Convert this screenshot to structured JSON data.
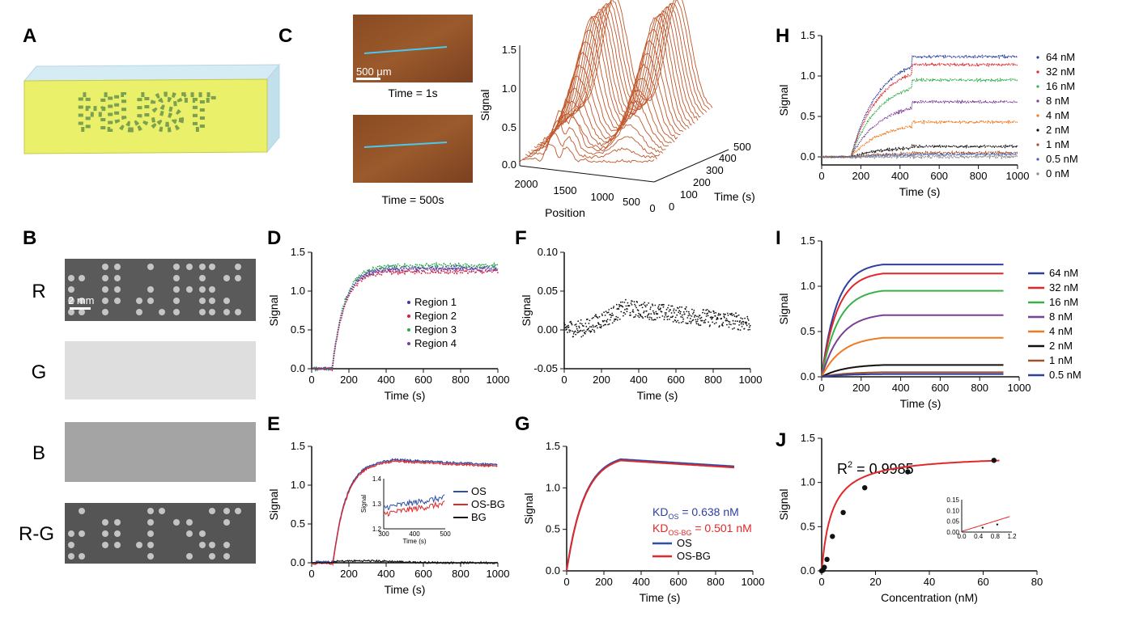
{
  "panels": {
    "A": {
      "label": "A",
      "text": "HUST"
    },
    "B": {
      "label": "B",
      "rows": [
        "R",
        "G",
        "B",
        "R-G"
      ],
      "scale": "2 mm"
    },
    "C": {
      "label": "C",
      "scale": "500 μm",
      "caption1": "Time = 1s",
      "caption2": "Time = 500s",
      "ylabel": "Signal",
      "xlabel": "Position",
      "zlabel": "Time (s)",
      "yticks": [
        "1.5",
        "1.0",
        "0.5",
        "0.0"
      ],
      "xticks": [
        "2000",
        "1500",
        "1000",
        "500",
        "0"
      ],
      "zticks": [
        "0",
        "100",
        "200",
        "300",
        "400",
        "500"
      ]
    },
    "D": {
      "label": "D"
    },
    "E": {
      "label": "E"
    },
    "F": {
      "label": "F"
    },
    "G": {
      "label": "G",
      "kd_os": "KD",
      "kd_os_sub": "OS",
      "kd_os_val": " = 0.638 nM",
      "kd_osbg_sub": "OS-BG",
      "kd_osbg_val": " = 0.501 nM"
    },
    "H": {
      "label": "H"
    },
    "I": {
      "label": "I"
    },
    "J": {
      "label": "J",
      "r2_text": "R",
      "r2_sup": "2",
      "r2_val": " = 0.9985"
    }
  },
  "chart_data": [
    {
      "panel": "C",
      "type": "line",
      "subtype": "3d-waterfall",
      "ylabel": "Signal",
      "xlabel": "Position",
      "zlabel": "Time (s)",
      "x_range": [
        0,
        2000
      ],
      "y_range": [
        0,
        1.5
      ],
      "z_range": [
        0,
        500
      ]
    },
    {
      "panel": "D",
      "type": "scatter",
      "xlabel": "Time (s)",
      "ylabel": "Signal",
      "xlim": [
        0,
        1000
      ],
      "ylim": [
        0,
        1.5
      ],
      "xticks": [
        "0",
        "200",
        "400",
        "600",
        "800",
        "1000"
      ],
      "yticks": [
        "0.0",
        "0.5",
        "1.0",
        "1.5"
      ],
      "series": [
        {
          "name": "Region 1",
          "color": "#3a3aa8",
          "plateau": 1.3
        },
        {
          "name": "Region 2",
          "color": "#d81b3a",
          "plateau": 1.25
        },
        {
          "name": "Region 3",
          "color": "#2fa84f",
          "plateau": 1.33
        },
        {
          "name": "Region 4",
          "color": "#7a3f98",
          "plateau": 1.28
        }
      ]
    },
    {
      "panel": "E",
      "type": "line",
      "xlabel": "Time (s)",
      "ylabel": "Signal",
      "xlim": [
        0,
        1000
      ],
      "ylim": [
        0,
        1.5
      ],
      "xticks": [
        "0",
        "200",
        "400",
        "600",
        "800",
        "1000"
      ],
      "yticks": [
        "0.0",
        "0.5",
        "1.0",
        "1.5"
      ],
      "series": [
        {
          "name": "OS",
          "color": "#2e4fa8"
        },
        {
          "name": "OS-BG",
          "color": "#e0282a"
        },
        {
          "name": "BG",
          "color": "#111111"
        }
      ],
      "inset": {
        "xlim": [
          300,
          500
        ],
        "ylim": [
          1.2,
          1.4
        ],
        "xticks": [
          "300",
          "400",
          "500"
        ],
        "yticks": [
          "1.2",
          "1.3",
          "1.4"
        ],
        "xlabel": "Time (s)",
        "ylabel": "Signal"
      }
    },
    {
      "panel": "F",
      "type": "scatter",
      "xlabel": "Time (s)",
      "ylabel": "Signal",
      "xlim": [
        0,
        1000
      ],
      "ylim": [
        -0.05,
        0.1
      ],
      "xticks": [
        "0",
        "200",
        "400",
        "600",
        "800",
        "1000"
      ],
      "yticks": [
        "-0.05",
        "0.00",
        "0.05",
        "0.10"
      ]
    },
    {
      "panel": "G",
      "type": "line",
      "xlabel": "Time (s)",
      "ylabel": "Signal",
      "xlim": [
        0,
        1000
      ],
      "ylim": [
        0,
        1.5
      ],
      "xticks": [
        "0",
        "200",
        "400",
        "600",
        "800",
        "1000"
      ],
      "yticks": [
        "0.0",
        "0.5",
        "1.0",
        "1.5"
      ],
      "series": [
        {
          "name": "OS",
          "color": "#2e4fa8",
          "KD_nM": 0.638
        },
        {
          "name": "OS-BG",
          "color": "#e0282a",
          "KD_nM": 0.501
        }
      ]
    },
    {
      "panel": "H",
      "type": "scatter",
      "xlabel": "Time (s)",
      "ylabel": "Signal",
      "xlim": [
        0,
        1000
      ],
      "ylim": [
        -0.1,
        1.5
      ],
      "xticks": [
        "0",
        "200",
        "400",
        "600",
        "800",
        "1000"
      ],
      "yticks": [
        "0.0",
        "0.5",
        "1.0",
        "1.5"
      ],
      "series": [
        {
          "name": "64 nM",
          "color": "#2e3fa0",
          "plateau": 1.24
        },
        {
          "name": "32 nM",
          "color": "#e0282a",
          "plateau": 1.14
        },
        {
          "name": "16 nM",
          "color": "#3ab04a",
          "plateau": 0.95
        },
        {
          "name": "8 nM",
          "color": "#7a3f98",
          "plateau": 0.68
        },
        {
          "name": "4 nM",
          "color": "#f07a20",
          "plateau": 0.43
        },
        {
          "name": "2 nM",
          "color": "#111111",
          "plateau": 0.13
        },
        {
          "name": "1 nM",
          "color": "#a0522d",
          "plateau": 0.05
        },
        {
          "name": "0.5 nM",
          "color": "#4a5fb0",
          "plateau": 0.03
        },
        {
          "name": "0 nM",
          "color": "#888888",
          "plateau": 0.0
        }
      ]
    },
    {
      "panel": "I",
      "type": "line",
      "xlabel": "Time (s)",
      "ylabel": "Signal",
      "xlim": [
        0,
        1000
      ],
      "ylim": [
        0,
        1.5
      ],
      "xticks": [
        "0",
        "200",
        "400",
        "600",
        "800",
        "1000"
      ],
      "yticks": [
        "0.0",
        "0.5",
        "1.0",
        "1.5"
      ],
      "series": [
        {
          "name": "64 nM",
          "color": "#2e3fa0",
          "plateau": 1.24
        },
        {
          "name": "32 nM",
          "color": "#e0282a",
          "plateau": 1.14
        },
        {
          "name": "16 nM",
          "color": "#3ab04a",
          "plateau": 0.95
        },
        {
          "name": "8 nM",
          "color": "#7a3f98",
          "plateau": 0.68
        },
        {
          "name": "4 nM",
          "color": "#f07a20",
          "plateau": 0.43
        },
        {
          "name": "2 nM",
          "color": "#111111",
          "plateau": 0.13
        },
        {
          "name": "1 nM",
          "color": "#a0522d",
          "plateau": 0.05
        },
        {
          "name": "0.5 nM",
          "color": "#2e3fa0",
          "plateau": 0.03
        }
      ]
    },
    {
      "panel": "J",
      "type": "scatter",
      "xlabel": "Concentration (nM)",
      "ylabel": "Signal",
      "xlim": [
        0,
        80
      ],
      "ylim": [
        0,
        1.5
      ],
      "xticks": [
        "0",
        "20",
        "40",
        "60",
        "80"
      ],
      "yticks": [
        "0.0",
        "0.5",
        "1.0",
        "1.5"
      ],
      "x": [
        0,
        0.5,
        1,
        2,
        4,
        8,
        16,
        32,
        64
      ],
      "y": [
        0.0,
        0.01,
        0.04,
        0.13,
        0.39,
        0.66,
        0.94,
        1.12,
        1.25
      ],
      "fit_color": "#e0282a",
      "R2": 0.9985,
      "inset": {
        "xlim": [
          0,
          1.2
        ],
        "ylim": [
          0,
          0.15
        ],
        "xticks": [
          "0.0",
          "0.4",
          "0.8",
          "1.2"
        ],
        "yticks": [
          "0.00",
          "0.05",
          "0.10",
          "0.15"
        ]
      }
    }
  ]
}
